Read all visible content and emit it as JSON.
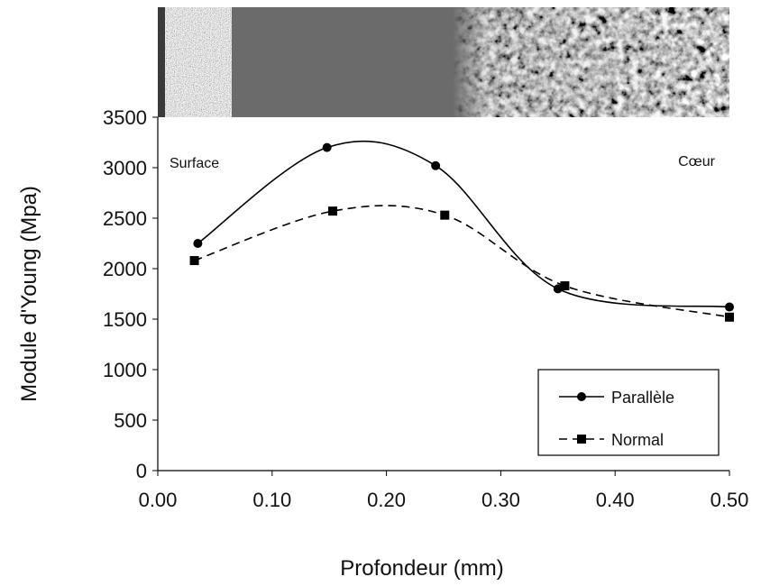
{
  "chart_data": {
    "type": "line",
    "x_label": "Profondeur (mm)",
    "y_label": "Module d'Young (Mpa)",
    "annotations": [
      "Surface",
      "Cœur"
    ],
    "xlim": [
      0,
      0.5
    ],
    "xticks": [
      {
        "value": 0,
        "label": "0.00"
      },
      {
        "value": 0.1,
        "label": "0.10"
      },
      {
        "value": 0.2,
        "label": "0.20"
      },
      {
        "value": 0.3,
        "label": "0.30"
      },
      {
        "value": 0.4,
        "label": "0.40"
      },
      {
        "value": 0.5,
        "label": "0.50"
      }
    ],
    "ylim": [
      0,
      3500
    ],
    "yticks": [
      0,
      500,
      1000,
      1500,
      2000,
      2500,
      3000,
      3500
    ],
    "grid": false,
    "legend": "bottom-right",
    "series": [
      {
        "name": "Parallèle",
        "color": "#000000",
        "marker": "circle",
        "linestyle": "solid",
        "x": [
          0.035,
          0.148,
          0.243,
          0.35,
          0.5
        ],
        "values": [
          2250,
          3200,
          3020,
          1800,
          1620
        ]
      },
      {
        "name": "Normal",
        "color": "#000000",
        "marker": "square",
        "linestyle": "dashed",
        "x": [
          0.032,
          0.153,
          0.251,
          0.356,
          0.5
        ],
        "values": [
          2080,
          2570,
          2530,
          1830,
          1520
        ]
      }
    ]
  }
}
